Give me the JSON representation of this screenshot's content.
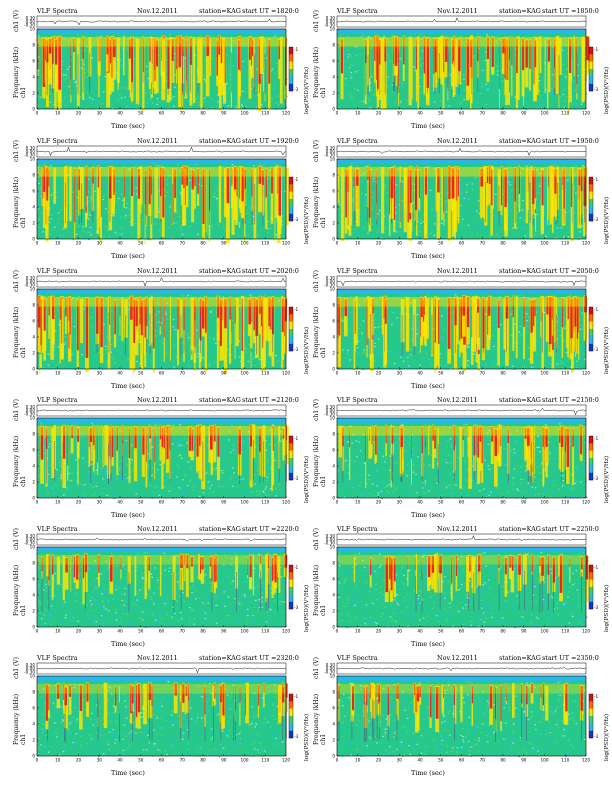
{
  "chart_data": [
    {
      "type": "heatmap",
      "title": "VLF Spectra",
      "date": "Nov.12.2011",
      "station": "station=KAG",
      "start": "start  UT  =1820:0",
      "top_ylabel": "ch1 (V)",
      "top_ticks": [
        "0.30",
        "0.00",
        "-0.30"
      ],
      "channel": "ch1",
      "ylabel": "Frequency  (kHz)",
      "y_ticks": [
        "10",
        "8",
        "6",
        "4",
        "2",
        "0"
      ],
      "ylim": [
        0,
        10
      ],
      "xlabel": "Time  (sec)",
      "x_ticks": [
        "0",
        "10",
        "20",
        "30",
        "40",
        "50",
        "60",
        "70",
        "80",
        "90",
        "100",
        "110",
        "120"
      ],
      "xlim": [
        0,
        120
      ],
      "colorbar_label": "log(PSD)(V²/Hz)",
      "colorbar_ticks": [
        "-1",
        "-3"
      ]
    },
    {
      "type": "heatmap",
      "title": "VLF Spectra",
      "date": "Nov.12.2011",
      "station": "station=KAG",
      "start": "start  UT  =1850:0",
      "top_ylabel": "ch1 (V)",
      "top_ticks": [
        "0.30",
        "0.00",
        "-0.30"
      ],
      "channel": "ch1",
      "ylabel": "Frequency  (kHz)",
      "y_ticks": [
        "10",
        "8",
        "6",
        "4",
        "2",
        "0"
      ],
      "ylim": [
        0,
        10
      ],
      "xlabel": "Time  (sec)",
      "x_ticks": [
        "0",
        "10",
        "20",
        "30",
        "40",
        "50",
        "60",
        "70",
        "80",
        "90",
        "100",
        "110",
        "120"
      ],
      "xlim": [
        0,
        120
      ],
      "colorbar_label": "log(PSD)(V²/Hz)",
      "colorbar_ticks": [
        "-1",
        "-3"
      ]
    },
    {
      "type": "heatmap",
      "title": "VLF Spectra",
      "date": "Nov.12.2011",
      "station": "station=KAG",
      "start": "start  UT  =1920:0",
      "top_ylabel": "ch1 (V)",
      "top_ticks": [
        "0.30",
        "0.00",
        "-0.30"
      ],
      "channel": "ch1",
      "ylabel": "Frequency  (kHz)",
      "y_ticks": [
        "10",
        "8",
        "6",
        "4",
        "2",
        "0"
      ],
      "ylim": [
        0,
        10
      ],
      "xlabel": "Time  (sec)",
      "x_ticks": [
        "0",
        "10",
        "20",
        "30",
        "40",
        "50",
        "60",
        "70",
        "80",
        "90",
        "100",
        "110",
        "120"
      ],
      "xlim": [
        0,
        120
      ],
      "colorbar_label": "log(PSD)(V²/Hz)",
      "colorbar_ticks": [
        "-1",
        "-3"
      ]
    },
    {
      "type": "heatmap",
      "title": "VLF Spectra",
      "date": "Nov.12.2011",
      "station": "station=KAG",
      "start": "start  UT  =1950:0",
      "top_ylabel": "ch1 (V)",
      "top_ticks": [
        "0.30",
        "0.00",
        "-0.30"
      ],
      "channel": "ch1",
      "ylabel": "Frequency  (kHz)",
      "y_ticks": [
        "10",
        "8",
        "6",
        "4",
        "2",
        "0"
      ],
      "ylim": [
        0,
        10
      ],
      "xlabel": "Time  (sec)",
      "x_ticks": [
        "0",
        "10",
        "20",
        "30",
        "40",
        "50",
        "60",
        "70",
        "80",
        "90",
        "100",
        "110",
        "120"
      ],
      "xlim": [
        0,
        120
      ],
      "colorbar_label": "log(PSD)(V²/Hz)",
      "colorbar_ticks": [
        "-1",
        "-3"
      ]
    },
    {
      "type": "heatmap",
      "title": "VLF Spectra",
      "date": "Nov.12.2011",
      "station": "station=KAG",
      "start": "start  UT  =2020:0",
      "top_ylabel": "ch1 (V)",
      "top_ticks": [
        "0.30",
        "0.00",
        "-0.30"
      ],
      "channel": "ch1",
      "ylabel": "Frequency  (kHz)",
      "y_ticks": [
        "10",
        "8",
        "6",
        "4",
        "2",
        "0"
      ],
      "ylim": [
        0,
        10
      ],
      "xlabel": "Time  (sec)",
      "x_ticks": [
        "0",
        "10",
        "20",
        "30",
        "40",
        "50",
        "60",
        "70",
        "80",
        "90",
        "100",
        "110",
        "120"
      ],
      "xlim": [
        0,
        120
      ],
      "colorbar_label": "log(PSD)(V²/Hz)",
      "colorbar_ticks": [
        "-1",
        "-3"
      ]
    },
    {
      "type": "heatmap",
      "title": "VLF Spectra",
      "date": "Nov.12.2011",
      "station": "station=KAG",
      "start": "start  UT  =2050:0",
      "top_ylabel": "ch1 (V)",
      "top_ticks": [
        "0.30",
        "0.00",
        "-0.30"
      ],
      "channel": "ch1",
      "ylabel": "Frequency  (kHz)",
      "y_ticks": [
        "10",
        "8",
        "6",
        "4",
        "2",
        "0"
      ],
      "ylim": [
        0,
        10
      ],
      "xlabel": "Time  (sec)",
      "x_ticks": [
        "0",
        "10",
        "20",
        "30",
        "40",
        "50",
        "60",
        "70",
        "80",
        "90",
        "100",
        "110",
        "120"
      ],
      "xlim": [
        0,
        120
      ],
      "colorbar_label": "log(PSD)(V²/Hz)",
      "colorbar_ticks": [
        "-1",
        "-3"
      ]
    },
    {
      "type": "heatmap",
      "title": "VLF Spectra",
      "date": "Nov.12.2011",
      "station": "station=KAG",
      "start": "start  UT  =2120:0",
      "top_ylabel": "ch1 (V)",
      "top_ticks": [
        "0.30",
        "0.00",
        "-0.30"
      ],
      "channel": "ch1",
      "ylabel": "Frequency  (kHz)",
      "y_ticks": [
        "10",
        "8",
        "6",
        "4",
        "2",
        "0"
      ],
      "ylim": [
        0,
        10
      ],
      "xlabel": "Time  (sec)",
      "x_ticks": [
        "0",
        "10",
        "20",
        "30",
        "40",
        "50",
        "60",
        "70",
        "80",
        "90",
        "100",
        "110",
        "120"
      ],
      "xlim": [
        0,
        120
      ],
      "colorbar_label": "log(PSD)(V²/Hz)",
      "colorbar_ticks": [
        "-1",
        "-3"
      ]
    },
    {
      "type": "heatmap",
      "title": "VLF Spectra",
      "date": "Nov.12.2011",
      "station": "station=KAG",
      "start": "start  UT  =2150:0",
      "top_ylabel": "ch1 (V)",
      "top_ticks": [
        "0.30",
        "0.00",
        "-0.30"
      ],
      "channel": "ch1",
      "ylabel": "Frequency  (kHz)",
      "y_ticks": [
        "10",
        "8",
        "6",
        "4",
        "2",
        "0"
      ],
      "ylim": [
        0,
        10
      ],
      "xlabel": "Time  (sec)",
      "x_ticks": [
        "0",
        "10",
        "20",
        "30",
        "40",
        "50",
        "60",
        "70",
        "80",
        "90",
        "100",
        "110",
        "120"
      ],
      "xlim": [
        0,
        120
      ],
      "colorbar_label": "log(PSD)(V²/Hz)",
      "colorbar_ticks": [
        "-1",
        "-3"
      ]
    },
    {
      "type": "heatmap",
      "title": "VLF Spectra",
      "date": "Nov.12.2011",
      "station": "station=KAG",
      "start": "start  UT  =2220:0",
      "top_ylabel": "ch1 (V)",
      "top_ticks": [
        "0.30",
        "0.00",
        "-0.30"
      ],
      "channel": "ch1",
      "ylabel": "Frequency  (kHz)",
      "y_ticks": [
        "10",
        "8",
        "6",
        "4",
        "2",
        "0"
      ],
      "ylim": [
        0,
        10
      ],
      "xlabel": "Time  (sec)",
      "x_ticks": [
        "0",
        "10",
        "20",
        "30",
        "40",
        "50",
        "60",
        "70",
        "80",
        "90",
        "100",
        "110",
        "120"
      ],
      "xlim": [
        0,
        120
      ],
      "colorbar_label": "log(PSD)(V²/Hz)",
      "colorbar_ticks": [
        "-1",
        "-3"
      ]
    },
    {
      "type": "heatmap",
      "title": "VLF Spectra",
      "date": "Nov.12.2011",
      "station": "station=KAG",
      "start": "start  UT  =2250:0",
      "top_ylabel": "ch1 (V)",
      "top_ticks": [
        "0.30",
        "0.00",
        "-0.30"
      ],
      "channel": "ch1",
      "ylabel": "Frequency  (kHz)",
      "y_ticks": [
        "10",
        "8",
        "6",
        "4",
        "2",
        "0"
      ],
      "ylim": [
        0,
        10
      ],
      "xlabel": "Time  (sec)",
      "x_ticks": [
        "0",
        "10",
        "20",
        "30",
        "40",
        "50",
        "60",
        "70",
        "80",
        "90",
        "100",
        "110",
        "120"
      ],
      "xlim": [
        0,
        120
      ],
      "colorbar_label": "log(PSD)(V²/Hz)",
      "colorbar_ticks": [
        "-1",
        "-3"
      ]
    },
    {
      "type": "heatmap",
      "title": "VLF Spectra",
      "date": "Nov.12.2011",
      "station": "station=KAG",
      "start": "start  UT  =2320:0",
      "top_ylabel": "ch1 (V)",
      "top_ticks": [
        "0.30",
        "0.00",
        "-0.30"
      ],
      "channel": "ch1",
      "ylabel": "Frequency  (kHz)",
      "y_ticks": [
        "10",
        "8",
        "6",
        "4",
        "2",
        "0"
      ],
      "ylim": [
        0,
        10
      ],
      "xlabel": "Time  (sec)",
      "x_ticks": [
        "0",
        "10",
        "20",
        "30",
        "40",
        "50",
        "60",
        "70",
        "80",
        "90",
        "100",
        "110",
        "120"
      ],
      "xlim": [
        0,
        120
      ],
      "colorbar_label": "log(PSD)(V²/Hz)",
      "colorbar_ticks": [
        "-1",
        "-3"
      ]
    },
    {
      "type": "heatmap",
      "title": "VLF Spectra",
      "date": "Nov.12.2011",
      "station": "station=KAG",
      "start": "start  UT  =2350:0",
      "top_ylabel": "ch1 (V)",
      "top_ticks": [
        "0.30",
        "0.00",
        "-0.30"
      ],
      "channel": "ch1",
      "ylabel": "Frequency  (kHz)",
      "y_ticks": [
        "10",
        "8",
        "6",
        "4",
        "2",
        "0"
      ],
      "ylim": [
        0,
        10
      ],
      "xlabel": "Time  (sec)",
      "x_ticks": [
        "0",
        "10",
        "20",
        "30",
        "40",
        "50",
        "60",
        "70",
        "80",
        "90",
        "100",
        "110",
        "120"
      ],
      "xlim": [
        0,
        120
      ],
      "colorbar_label": "log(PSD)(V²/Hz)",
      "colorbar_ticks": [
        "-1",
        "-3"
      ]
    }
  ],
  "colors": {
    "high": "#e8141e",
    "mid": "#ffe400",
    "low": "#26c98a",
    "floor": "#25b8e8",
    "axis": "#000000"
  }
}
